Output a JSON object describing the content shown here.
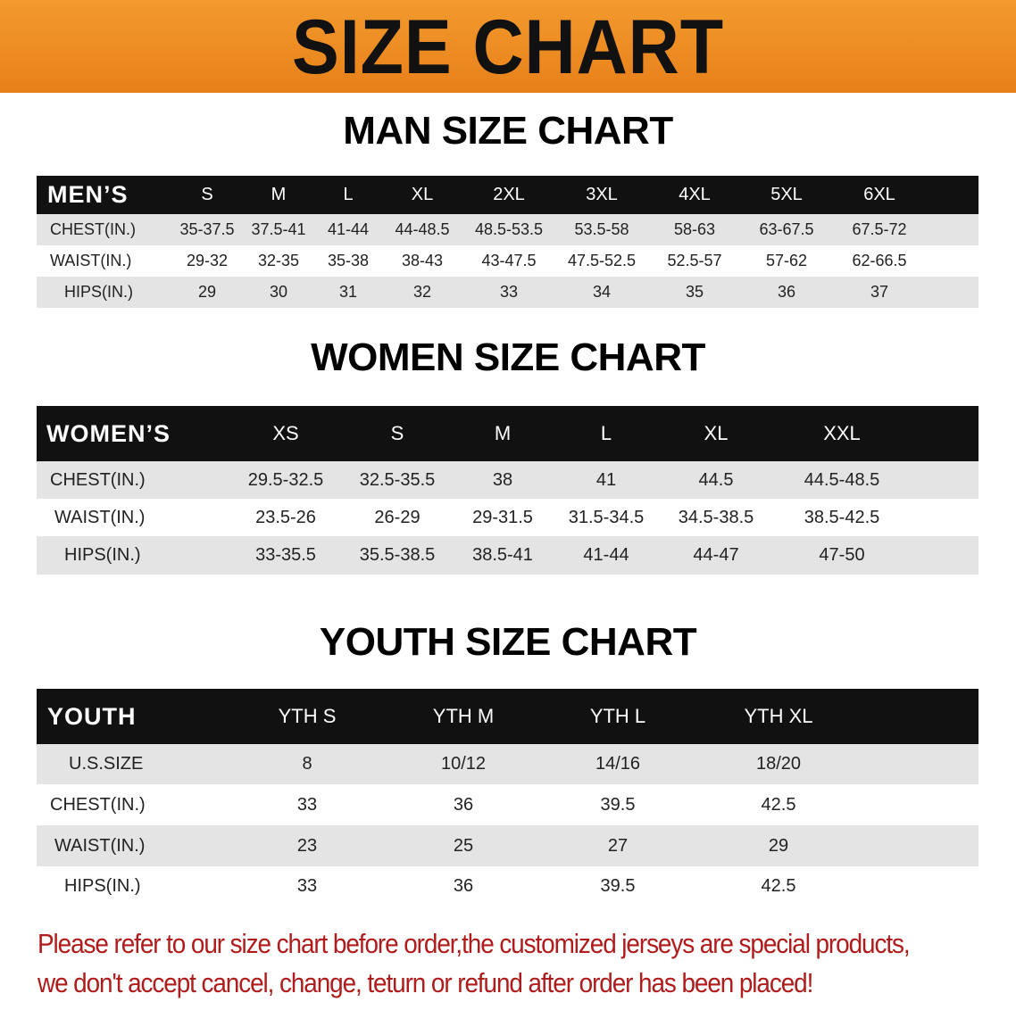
{
  "banner": {
    "title": "SIZE CHART",
    "color": "#ee8a22"
  },
  "men": {
    "title": "MAN SIZE CHART",
    "header": "MEN’S",
    "sizes": [
      "S",
      "M",
      "L",
      "XL",
      "2XL",
      "3XL",
      "4XL",
      "5XL",
      "6XL"
    ],
    "rows": [
      {
        "label": "CHEST(IN.)",
        "values": [
          "35-37.5",
          "37.5-41",
          "41-44",
          "44-48.5",
          "48.5-53.5",
          "53.5-58",
          "58-63",
          "63-67.5",
          "67.5-72"
        ]
      },
      {
        "label": "WAIST(IN.)",
        "values": [
          "29-32",
          "32-35",
          "35-38",
          "38-43",
          "43-47.5",
          "47.5-52.5",
          "52.5-57",
          "57-62",
          "62-66.5"
        ]
      },
      {
        "label": "HIPS(IN.)",
        "values": [
          "29",
          "30",
          "31",
          "32",
          "33",
          "34",
          "35",
          "36",
          "37"
        ]
      }
    ]
  },
  "women": {
    "title": "WOMEN SIZE CHART",
    "header": "WOMEN’S",
    "sizes": [
      "XS",
      "S",
      "M",
      "L",
      "XL",
      "XXL"
    ],
    "rows": [
      {
        "label": "CHEST(IN.)",
        "values": [
          "29.5-32.5",
          "32.5-35.5",
          "38",
          "41",
          "44.5",
          "44.5-48.5"
        ]
      },
      {
        "label": "WAIST(IN.)",
        "values": [
          "23.5-26",
          "26-29",
          "29-31.5",
          "31.5-34.5",
          "34.5-38.5",
          "38.5-42.5"
        ]
      },
      {
        "label": "HIPS(IN.)",
        "values": [
          "33-35.5",
          "35.5-38.5",
          "38.5-41",
          "41-44",
          "44-47",
          "47-50"
        ]
      }
    ]
  },
  "youth": {
    "title": "YOUTH SIZE CHART",
    "header": "YOUTH",
    "sizes": [
      "YTH S",
      "YTH M",
      "YTH L",
      "YTH XL"
    ],
    "rows": [
      {
        "label": "U.S.SIZE",
        "values": [
          "8",
          "10/12",
          "14/16",
          "18/20"
        ]
      },
      {
        "label": "CHEST(IN.)",
        "values": [
          "33",
          "36",
          "39.5",
          "42.5"
        ]
      },
      {
        "label": "WAIST(IN.)",
        "values": [
          "23",
          "25",
          "27",
          "29"
        ]
      },
      {
        "label": "HIPS(IN.)",
        "values": [
          "33",
          "36",
          "39.5",
          "42.5"
        ]
      }
    ]
  },
  "footer": {
    "line1": "Please refer to our size chart before order,the customized jerseys are special products,",
    "line2": "we don't accept cancel, change, teturn or refund after order has been placed!",
    "color": "#b01c1c"
  }
}
